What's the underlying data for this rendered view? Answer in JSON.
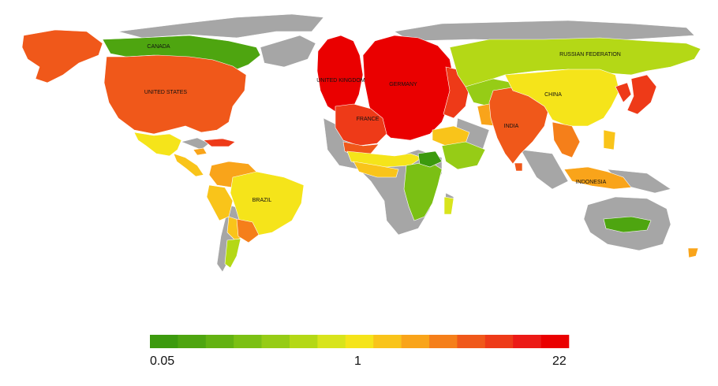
{
  "map": {
    "country_labels": {
      "canada": "CANADA",
      "united_states": "UNITED STATES",
      "brazil": "BRAZIL",
      "united_kingdom": "UNITED KINGDOM",
      "germany": "GERMANY",
      "france": "FRANCE",
      "russian_federation": "RUSSIAN FEDERATION",
      "china": "CHINA",
      "india": "INDIA",
      "indonesia": "INDONESIA"
    }
  },
  "legend": {
    "min_label": "0.05",
    "mid_label": "1",
    "max_label": "22",
    "colors": [
      "#3c9a0e",
      "#4ea510",
      "#63b212",
      "#7bc014",
      "#96cc16",
      "#b4d816",
      "#d8e41c",
      "#f5e41a",
      "#f9c41a",
      "#f9a41a",
      "#f57f1a",
      "#f0581a",
      "#ee3a18",
      "#ec1a16",
      "#ea0000"
    ]
  }
}
